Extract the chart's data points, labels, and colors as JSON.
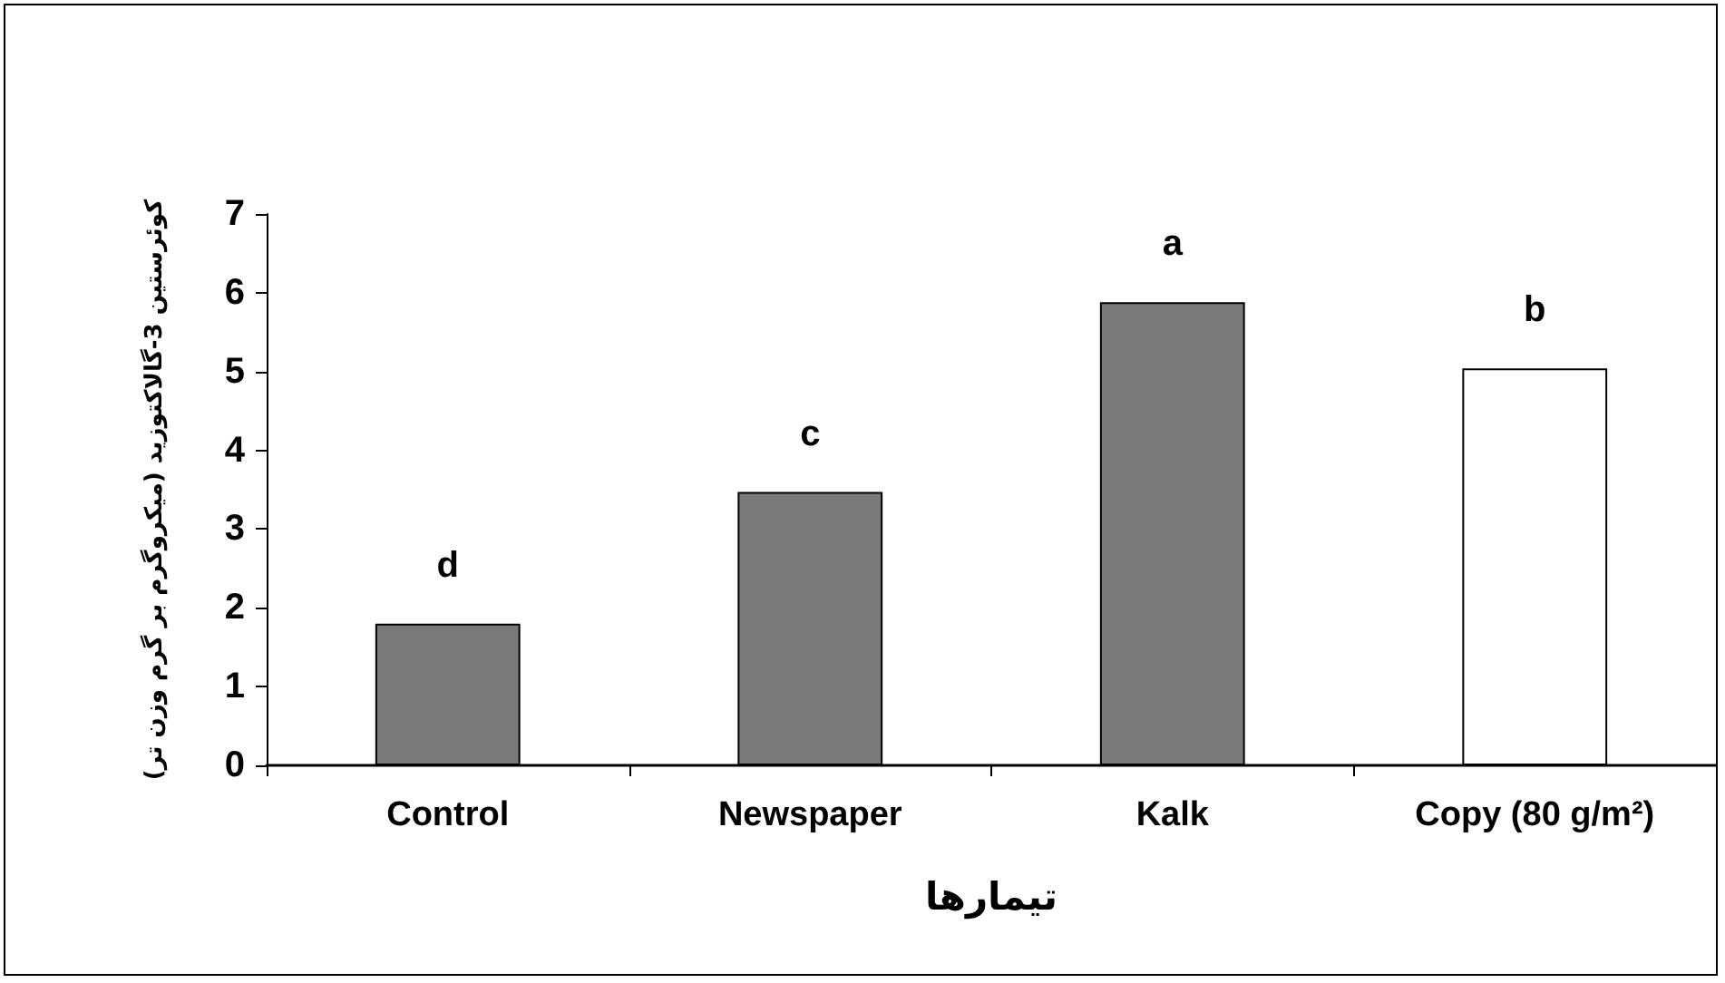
{
  "chart_data": {
    "type": "bar",
    "xlabel": "تیمارها",
    "ylabel": "کوئرستین 3-گالاکتوزید (میکروگرم بر گرم وزن تر)",
    "categories": [
      "Control",
      "Newspaper",
      "Kalk",
      "Copy (80 g/m²)"
    ],
    "values": [
      1.8,
      3.47,
      5.88,
      5.04
    ],
    "colors": [
      "#7a7a7a",
      "#7a7a7a",
      "#7a7a7a",
      "#ffffff"
    ],
    "value_labels": [
      "d",
      "c",
      "a",
      "b"
    ],
    "ylim": [
      0,
      7
    ],
    "yticks": [
      0,
      1,
      2,
      3,
      4,
      5,
      6,
      7
    ],
    "grid": false
  }
}
